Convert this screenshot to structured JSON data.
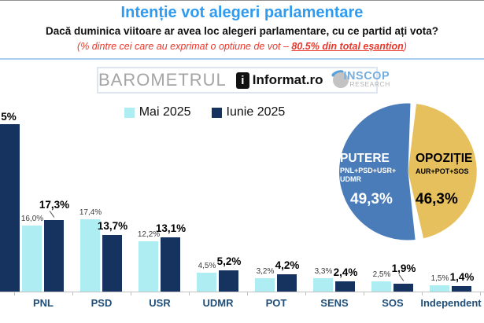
{
  "header": {
    "title": "Intenție vot alegeri parlamentare",
    "subtitle": "Dacă duminica viitoare ar avea loc alegeri parlamentare, cu ce partid ați vota?",
    "note_prefix": "(% dintre cei care au exprimat o optiune de vot – ",
    "note_emphasis": "80.5% din total eșantion",
    "note_suffix": ")"
  },
  "logos": {
    "barometrul": "BAROMETRUL",
    "informat_icon": "i",
    "informat": "Informat.ro",
    "inscop_line1": "INSCOP",
    "inscop_line2": "RESEARCH"
  },
  "legend": [
    {
      "label": "Mai 2025",
      "color": "#aeeef2"
    },
    {
      "label": "Iunie 2025",
      "color": "#16325f"
    }
  ],
  "colors": {
    "title_blue": "#2f9bf0",
    "note_red": "#e8382c",
    "bar_mai": "#aeeef2",
    "bar_iunie": "#16325f",
    "axis_label_blue": "#1f4e79",
    "pie_blue": "#4a7cba",
    "pie_yellow": "#e7c05e"
  },
  "chart_data": [
    {
      "type": "bar",
      "title": "Intenție vot alegeri parlamentare",
      "series_names": [
        "Mai 2025",
        "Iunie 2025"
      ],
      "ylim": [
        0,
        45
      ],
      "grid": false,
      "legend_position": "top",
      "clipped_note": "Leftmost group is clipped at image edge: only the Iunie bar (~40.5%) and label fragment '5%' are visible",
      "groups": [
        {
          "party": "",
          "clipped": true,
          "mai": null,
          "iunie": 40.5,
          "mai_label": "",
          "iunie_label": "5%"
        },
        {
          "party": "PNL",
          "mai": 16.0,
          "iunie": 17.3,
          "mai_label": "16,0%",
          "iunie_label": "17,3%"
        },
        {
          "party": "PSD",
          "mai": 17.4,
          "iunie": 13.7,
          "mai_label": "17,4%",
          "iunie_label": "13,7%"
        },
        {
          "party": "USR",
          "mai": 12.2,
          "iunie": 13.1,
          "mai_label": "12,2%",
          "iunie_label": "13,1%"
        },
        {
          "party": "UDMR",
          "mai": 4.5,
          "iunie": 5.2,
          "mai_label": "4,5%",
          "iunie_label": "5,2%"
        },
        {
          "party": "POT",
          "mai": 3.2,
          "iunie": 4.2,
          "mai_label": "3,2%",
          "iunie_label": "4,2%"
        },
        {
          "party": "SENS",
          "mai": 3.3,
          "iunie": 2.4,
          "mai_label": "3,3%",
          "iunie_label": "2,4%"
        },
        {
          "party": "SOS",
          "mai": 2.5,
          "iunie": 1.9,
          "mai_label": "2,5%",
          "iunie_label": "1,9%"
        },
        {
          "party": "Independent",
          "mai": 1.5,
          "iunie": 1.4,
          "mai_label": "1,5%",
          "iunie_label": "1,4%"
        }
      ]
    },
    {
      "type": "pie",
      "slices": [
        {
          "name": "PUTERE",
          "detail_lines": [
            "PNL+PSD+USR+",
            "UDMR"
          ],
          "value": 49.3,
          "value_label": "49,3%",
          "color": "#4a7cba",
          "text_color": "#ffffff"
        },
        {
          "name": "OPOZIȚIE",
          "detail_lines": [
            "AUR+POT+SOS"
          ],
          "value": 46.3,
          "value_label": "46,3%",
          "color": "#e7c05e",
          "text_color": "#000000"
        }
      ]
    }
  ]
}
